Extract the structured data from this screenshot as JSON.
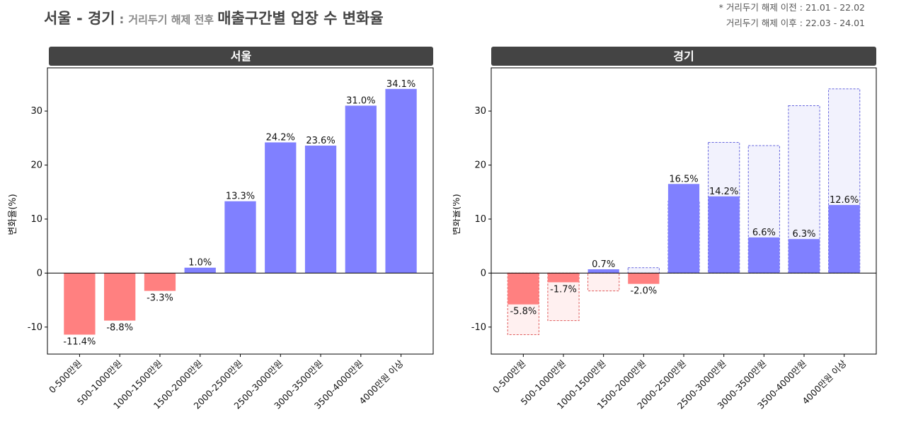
{
  "title": {
    "part1": "서울 - 경기",
    "colon": " : ",
    "part2": "거리두기 해제 전후",
    "part3": "매출구간별 업장 수 변화율"
  },
  "note": {
    "line1": "* 거리두기 해제 이전 : 21.01 - 22.02",
    "line2": "거리두기 해제 이후 : 22.03 - 24.01"
  },
  "colors": {
    "positive": "#8080ff",
    "negative": "#ff8080",
    "ghost_positive_fill": "#f2f2fd",
    "ghost_positive_stroke": "#6666dd",
    "ghost_negative_fill": "#fff0f0",
    "ghost_negative_stroke": "#e05a5a",
    "panel_header": "#444444"
  },
  "chart_data": [
    {
      "type": "bar",
      "title": "서울",
      "ylabel": "변화율(%)",
      "ylim": [
        -15,
        38
      ],
      "yticks": [
        -10,
        0,
        10,
        20,
        30
      ],
      "categories": [
        "0-500만원",
        "500-1000만원",
        "1000-1500만원",
        "1500-2000만원",
        "2000-2500만원",
        "2500-3000만원",
        "3000-3500만원",
        "3500-4000만원",
        "4000만원 이상"
      ],
      "values": [
        -11.4,
        -8.8,
        -3.3,
        1.0,
        13.3,
        24.2,
        23.6,
        31.0,
        34.1
      ],
      "labels": [
        "-11.4%",
        "-8.8%",
        "-3.3%",
        "1.0%",
        "13.3%",
        "24.2%",
        "23.6%",
        "31.0%",
        "34.1%"
      ]
    },
    {
      "type": "bar",
      "title": "경기",
      "ylabel": "변화율(%)",
      "ylim": [
        -15,
        38
      ],
      "yticks": [
        -10,
        0,
        10,
        20,
        30
      ],
      "categories": [
        "0-500만원",
        "500-1000만원",
        "1000-1500만원",
        "1500-2000만원",
        "2000-2500만원",
        "2500-3000만원",
        "3000-3500만원",
        "3500-4000만원",
        "4000만원 이상"
      ],
      "values": [
        -5.8,
        -1.7,
        0.7,
        -2.0,
        16.5,
        14.2,
        6.6,
        6.3,
        12.6
      ],
      "labels": [
        "-5.8%",
        "-1.7%",
        "0.7%",
        "-2.0%",
        "16.5%",
        "14.2%",
        "6.6%",
        "6.3%",
        "12.6%"
      ],
      "reference_values": [
        -11.4,
        -8.8,
        -3.3,
        1.0,
        13.3,
        24.2,
        23.6,
        31.0,
        34.1
      ]
    }
  ]
}
